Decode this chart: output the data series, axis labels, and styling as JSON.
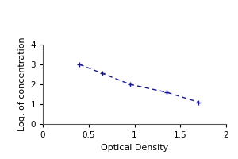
{
  "x": [
    0.4,
    0.65,
    0.95,
    1.35,
    1.7
  ],
  "y": [
    3.0,
    2.55,
    2.0,
    1.6,
    1.1
  ],
  "line_color": "#1a1a8c",
  "marker_color": "#1a1a8c",
  "xlabel": "Optical Density",
  "ylabel": "Log. of concentration",
  "xlim": [
    0,
    2
  ],
  "ylim": [
    0,
    4
  ],
  "xticks": [
    0,
    0.5,
    1.0,
    1.5,
    2.0
  ],
  "yticks": [
    0,
    1,
    2,
    3,
    4
  ],
  "figure_facecolor": "#ffffff",
  "axes_facecolor": "#ffffff",
  "xlabel_fontsize": 8,
  "ylabel_fontsize": 8,
  "tick_fontsize": 7.5
}
